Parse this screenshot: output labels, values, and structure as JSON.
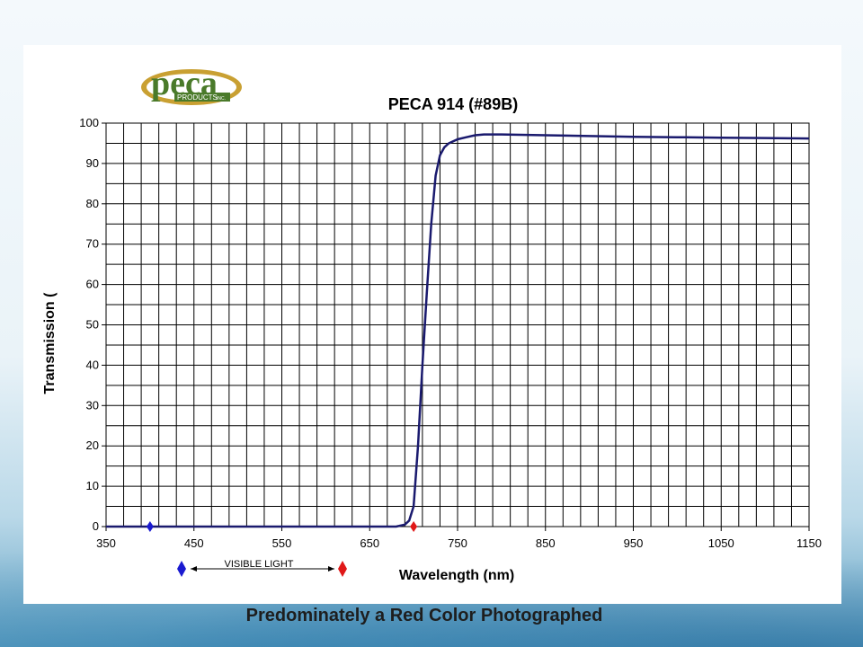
{
  "logo": {
    "word": "peca",
    "sub": "PRODUCTS",
    "inc": "INC.",
    "colors": {
      "green": "#4a7a2a",
      "gold": "#c9a032",
      "text": "#ffffff"
    }
  },
  "caption": "Predominately a Red Color Photographed",
  "visible_light_label": "VISIBLE LIGHT",
  "markers": {
    "blue_color": "#1a1ad0",
    "red_color": "#e01818"
  },
  "chart_data": {
    "type": "line",
    "title": "PECA 914 (#89B)",
    "xlabel": "Wavelength (nm)",
    "ylabel": "Transmission (",
    "xlim": [
      350,
      1150
    ],
    "ylim": [
      0,
      100
    ],
    "x_ticks": [
      "350",
      "450",
      "550",
      "650",
      "750",
      "850",
      "950",
      "1050",
      "1150"
    ],
    "y_ticks": [
      "0",
      "10",
      "20",
      "30",
      "40",
      "50",
      "60",
      "70",
      "80",
      "90",
      "100"
    ],
    "grid": true,
    "line_color": "#1a1a6e",
    "series": [
      {
        "x": [
          350,
          400,
          500,
          600,
          680,
          690,
          695,
          700,
          705,
          710,
          715,
          720,
          725,
          730,
          735,
          740,
          745,
          750,
          760,
          770,
          780,
          800,
          850,
          900,
          950,
          1000,
          1050,
          1100,
          1150
        ],
        "y": [
          0,
          0,
          0,
          0,
          0,
          0.5,
          1.5,
          5,
          20,
          40,
          58,
          75,
          87,
          92,
          94,
          95,
          95.5,
          96,
          96.5,
          97,
          97.2,
          97.2,
          97.0,
          96.8,
          96.6,
          96.5,
          96.4,
          96.3,
          96.2
        ]
      }
    ],
    "point_markers": [
      {
        "x": 400,
        "y": 0,
        "color": "#1a1ad0"
      },
      {
        "x": 700,
        "y": 0,
        "color": "#e01818"
      }
    ]
  }
}
